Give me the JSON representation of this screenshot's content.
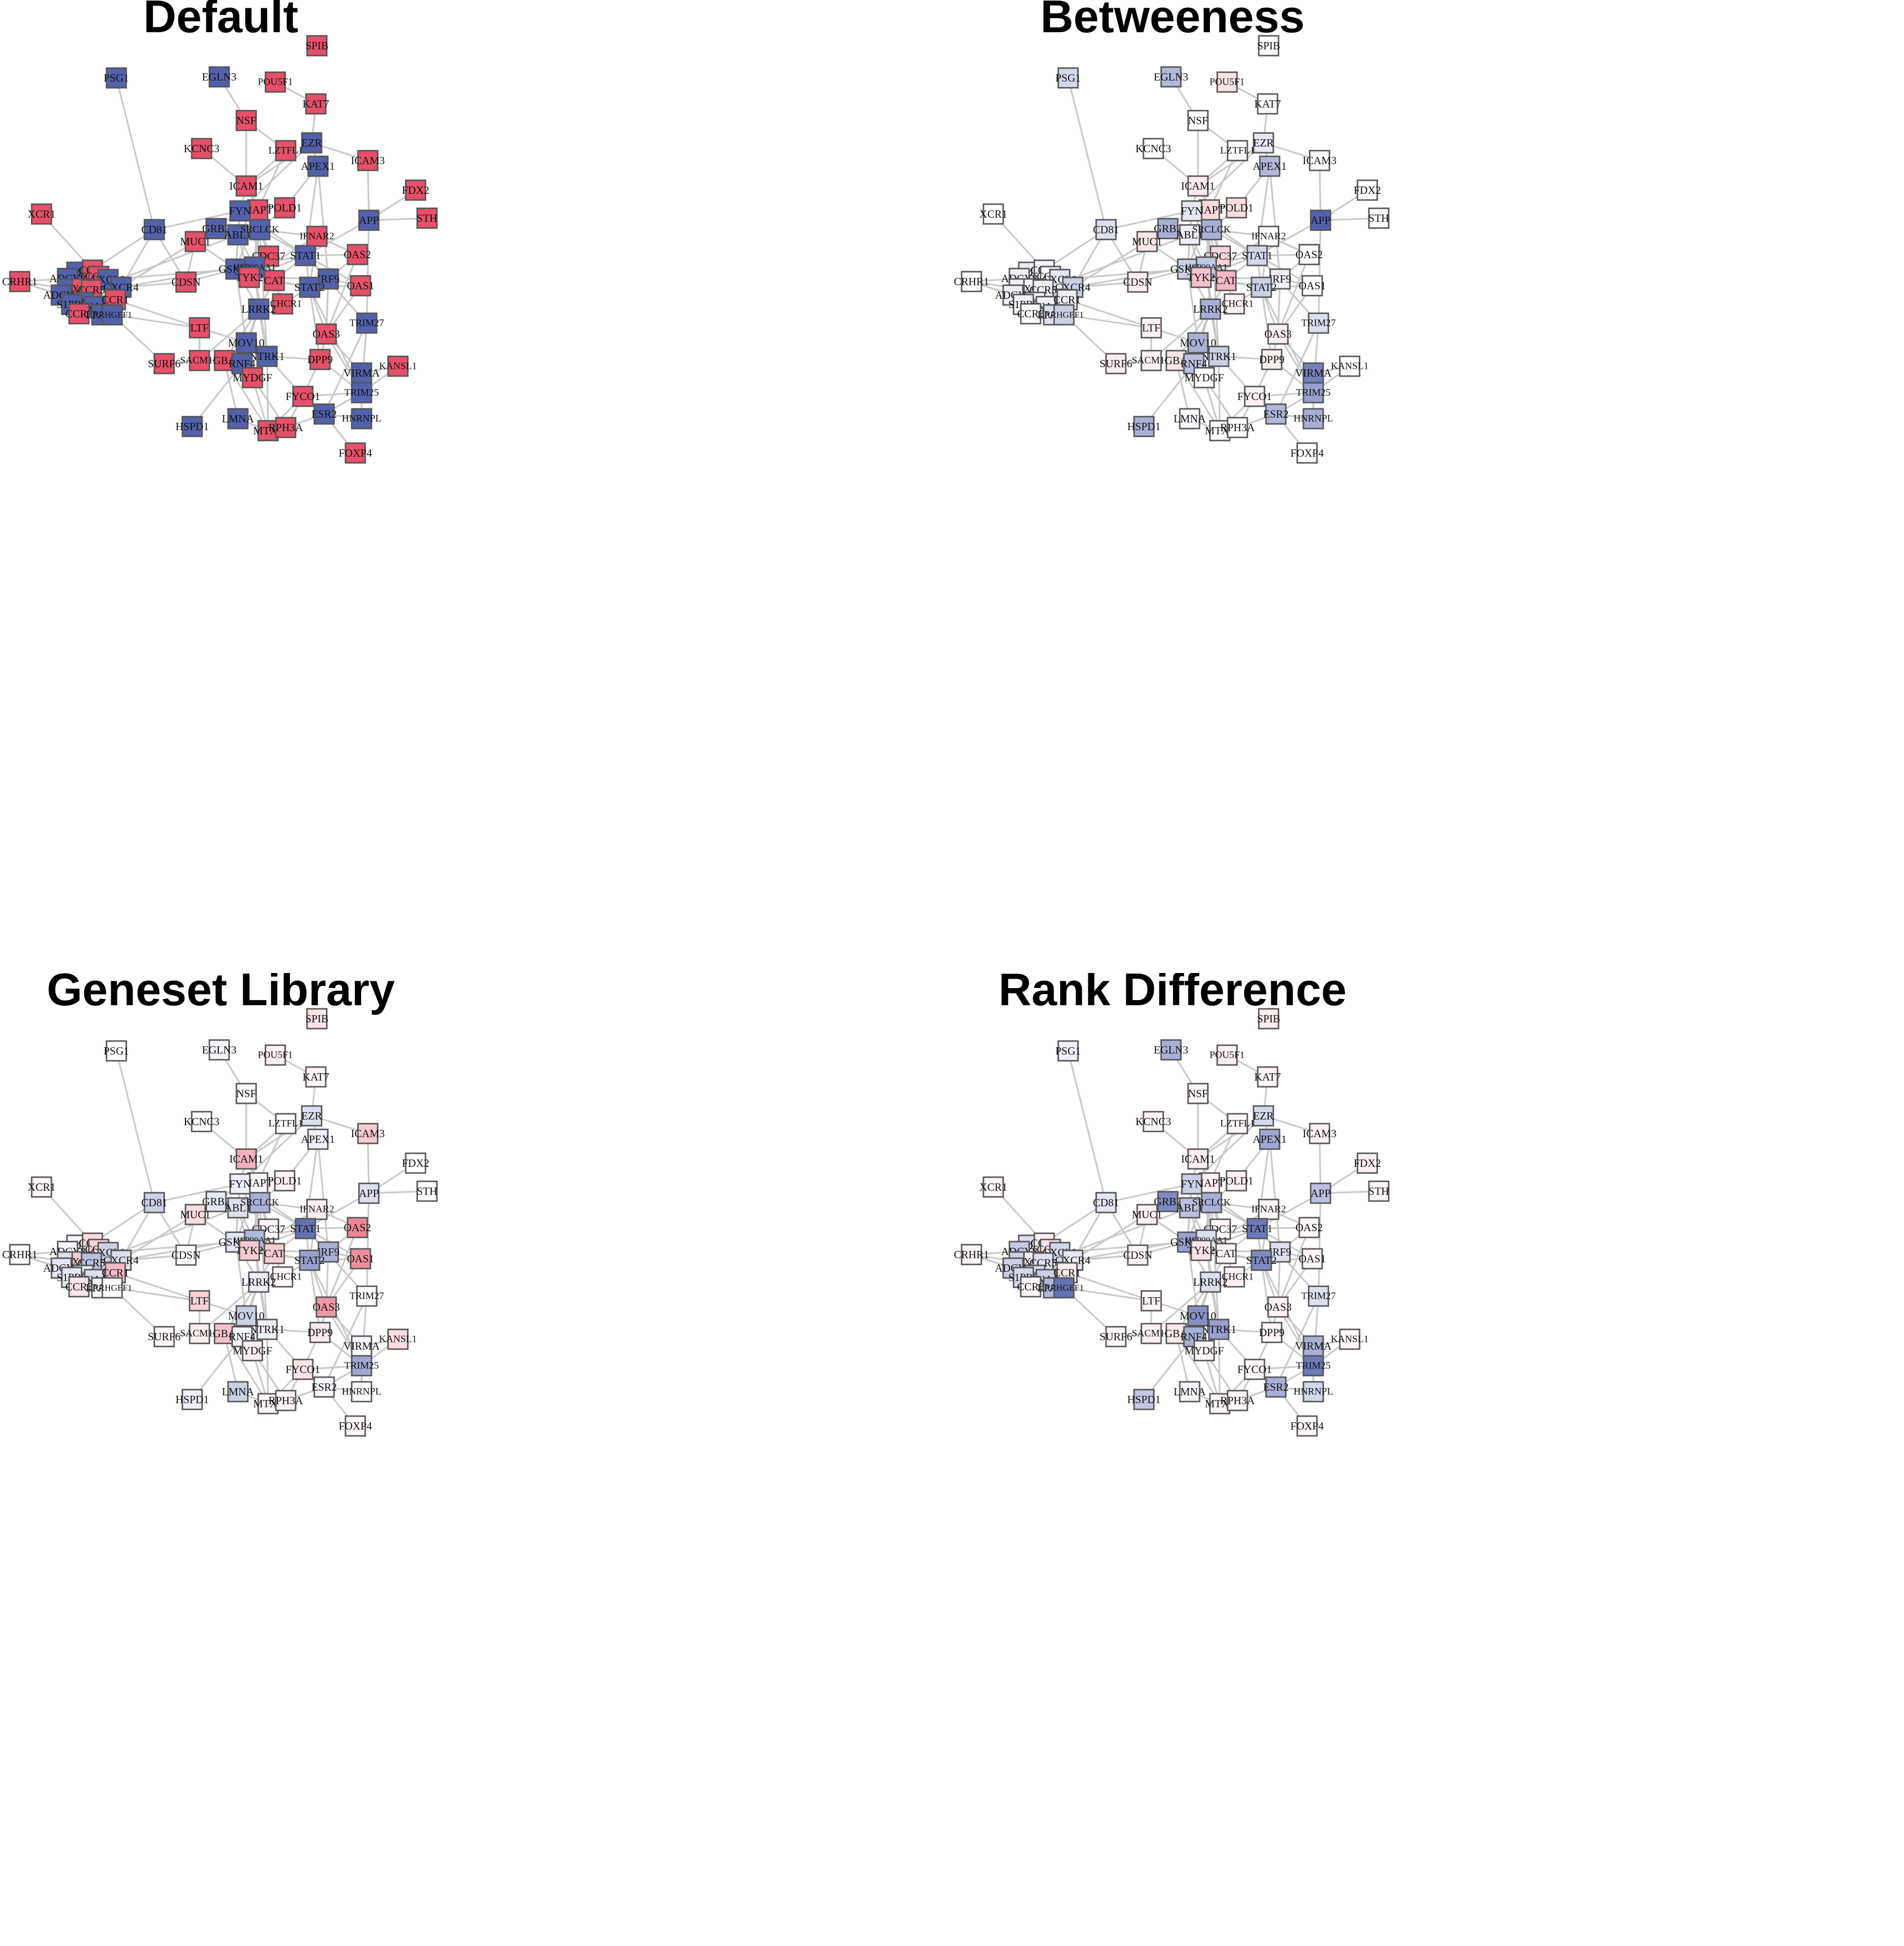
{
  "panels": [
    {
      "title": "Default",
      "values": {
        "SPIB": -1,
        "PSG1": 1,
        "EGLN3": 1,
        "POU5F1": -1,
        "KAT7": -1,
        "NSF": -1,
        "KCNC3": -1,
        "LZTFL1": -1,
        "EZR": 1,
        "ICAM3": -1,
        "APEX1": 1,
        "FDX2": -1,
        "ICAM1": -1,
        "XCR1": -1,
        "POLD1": -1,
        "MAPT": -1,
        "FYN": 1,
        "APP": 1,
        "STH": -1,
        "CD81": 1,
        "GRB2": 1,
        "ABL1": 1,
        "SRCLCK": 1,
        "MUC1": -1,
        "IFNAR2": -1,
        "CDC37": -1,
        "STAT1": 1,
        "OAS2": -1,
        "GSK3B": 1,
        "HSP90AA1": 1,
        "TYK2": -1,
        "CAT": -1,
        "IRF9": 1,
        "CRHR1": -1,
        "NMU": 1,
        "CCR2": -1,
        "CCR9": -1,
        "ADCY8": 1,
        "CXCL9": 1,
        "CXCR4": 1,
        "ADCY1": 1,
        "CXCR2": -1,
        "CCR5": -1,
        "ADCY3": 1,
        "CCL5": 1,
        "S1PR5": 1,
        "GNA12": 1,
        "CCR1": -1,
        "CCR3": -1,
        "LPAR1": 1,
        "ARHGEF1": 1,
        "CDSN": -1,
        "STAT2": 1,
        "OAS1": -1,
        "CCHCR1": -1,
        "LRRK2": 1,
        "TRIM27": 1,
        "LTF": -1,
        "OAS3": -1,
        "MOV10": 1,
        "NTRK1": 1,
        "SURF6": -1,
        "SACM1L": -1,
        "GBA": -1,
        "RNF4": 1,
        "DPP9": -1,
        "KANSL1": -1,
        "MYDGF": -1,
        "VIRMA": 1,
        "TRIM25": 1,
        "FYCO1": -1,
        "LMNA": 1,
        "ESR2": 1,
        "HNRNPL": 1,
        "HSPD1": 1,
        "MTX1": -1,
        "RPH3A": -1,
        "FOXP4": -1
      }
    },
    {
      "title": "Betweeness",
      "values": {
        "SPIB": 0,
        "PSG1": 0.25,
        "EGLN3": 0.45,
        "POU5F1": -0.15,
        "KAT7": 0,
        "NSF": 0,
        "KCNC3": 0,
        "LZTFL1": 0,
        "EZR": 0.15,
        "ICAM3": 0,
        "APEX1": 0.45,
        "FDX2": 0,
        "ICAM1": -0.12,
        "XCR1": 0,
        "POLD1": -0.2,
        "MAPT": -0.22,
        "FYN": 0.15,
        "APP": 1,
        "STH": 0,
        "CD81": 0.2,
        "GRB2": 0.5,
        "ABL1": 0.1,
        "SRCLCK": 0.5,
        "MUC1": -0.15,
        "IFNAR2": 0,
        "CDC37": -0.25,
        "STAT1": 0.25,
        "OAS2": 0,
        "GSK3B": 0.3,
        "HSP90AA1": 0.35,
        "TYK2": -0.35,
        "CAT": -0.4,
        "IRF9": 0.1,
        "CRHR1": 0,
        "NMU": 0.12,
        "CCR2": 0.05,
        "CCR9": 0.05,
        "ADCY8": 0.1,
        "CXCL9": 0.15,
        "CXCR4": 0.3,
        "ADCY1": 0.1,
        "CXCR2": 0.05,
        "CCR5": 0.1,
        "ADCY3": 0.1,
        "CCL5": 0.05,
        "S1PR5": 0.05,
        "GNA12": 0.1,
        "CCR1": 0.1,
        "CCR3": 0,
        "LPAR1": 0.2,
        "ARHGEF1": 0.3,
        "CDSN": -0.1,
        "STAT2": 0.3,
        "OAS1": 0,
        "CCHCR1": -0.08,
        "LRRK2": 0.5,
        "TRIM27": 0.2,
        "LTF": -0.08,
        "OAS3": -0.1,
        "MOV10": 0.5,
        "NTRK1": 0.3,
        "SURF6": -0.1,
        "SACM1L": -0.08,
        "GBA": -0.15,
        "RNF4": 0.4,
        "DPP9": -0.1,
        "KANSL1": 0,
        "MYDGF": 0,
        "VIRMA": 0.8,
        "TRIM25": 0.6,
        "FYCO1": -0.08,
        "LMNA": 0.05,
        "ESR2": 0.45,
        "HNRNPL": 0.5,
        "HSPD1": 0.5,
        "MTX1": 0,
        "RPH3A": 0,
        "FOXP4": 0
      }
    },
    {
      "title": "Geneset Library",
      "values": {
        "SPIB": -0.15,
        "PSG1": 0,
        "EGLN3": 0.05,
        "POU5F1": -0.08,
        "KAT7": -0.05,
        "NSF": 0,
        "KCNC3": 0,
        "LZTFL1": 0,
        "EZR": 0.2,
        "ICAM3": -0.3,
        "APEX1": 0.1,
        "FDX2": 0,
        "ICAM1": -0.45,
        "XCR1": -0.05,
        "POLD1": -0.08,
        "MAPT": -0.05,
        "FYN": 0.1,
        "APP": 0.2,
        "STH": 0,
        "CD81": 0.3,
        "GRB2": 0.15,
        "ABL1": 0.2,
        "SRCLCK": 0.5,
        "MUC1": -0.2,
        "IFNAR2": -0.1,
        "CDC37": -0.05,
        "STAT1": 0.9,
        "OAS2": -0.7,
        "GSK3B": 0.15,
        "HSP90AA1": 0.45,
        "TYK2": -0.3,
        "CAT": -0.3,
        "IRF9": 0.5,
        "CRHR1": 0,
        "NMU": 0.05,
        "CCR2": -0.2,
        "CCR9": -0.25,
        "ADCY8": 0.05,
        "CXCL9": 0.3,
        "CXCR4": 0.2,
        "ADCY1": 0.2,
        "CXCR2": -0.3,
        "CCR5": 0.4,
        "ADCY3": 0.15,
        "CCL5": 0.1,
        "S1PR5": 0.15,
        "GNA12": 0.2,
        "CCR1": -0.4,
        "CCR3": -0.15,
        "LPAR1": 0.05,
        "ARHGEF1": 0,
        "CDSN": 0,
        "STAT2": 0.6,
        "OAS1": -0.65,
        "CCHCR1": -0.05,
        "LRRK2": 0.1,
        "TRIM27": 0,
        "LTF": -0.25,
        "OAS3": -0.6,
        "MOV10": 0.3,
        "NTRK1": 0.1,
        "SURF6": -0.05,
        "SACM1L": -0.1,
        "GBA": -0.35,
        "RNF4": 0.05,
        "DPP9": -0.12,
        "KANSL1": -0.2,
        "MYDGF": -0.1,
        "VIRMA": 0.05,
        "TRIM25": 0.55,
        "FYCO1": -0.15,
        "LMNA": 0.3,
        "ESR2": 0.05,
        "HNRNPL": 0,
        "HSPD1": 0.1,
        "MTX1": -0.05,
        "RPH3A": -0.05,
        "FOXP4": -0.05
      }
    },
    {
      "title": "Rank Difference",
      "values": {
        "SPIB": -0.1,
        "PSG1": 0.1,
        "EGLN3": 0.5,
        "POU5F1": -0.08,
        "KAT7": -0.05,
        "NSF": -0.05,
        "KCNC3": -0.05,
        "LZTFL1": -0.05,
        "EZR": 0.25,
        "ICAM3": -0.08,
        "APEX1": 0.55,
        "FDX2": -0.08,
        "ICAM1": -0.1,
        "XCR1": -0.05,
        "POLD1": -0.08,
        "MAPT": -0.1,
        "FYN": 0.3,
        "APP": 0.4,
        "STH": -0.05,
        "CD81": 0.15,
        "GRB2": 0.75,
        "ABL1": 0.4,
        "SRCLCK": 0.5,
        "MUC1": -0.08,
        "IFNAR2": -0.05,
        "CDC37": -0.05,
        "STAT1": 0.85,
        "OAS2": -0.05,
        "GSK3B": 0.6,
        "HSP90AA1": 0.2,
        "TYK2": -0.15,
        "CAT": -0.05,
        "IRF9": 0.2,
        "CRHR1": -0.05,
        "NMU": 0.2,
        "CCR2": -0.1,
        "CCR9": -0.15,
        "ADCY8": 0.35,
        "CXCL9": 0.25,
        "CXCR4": 0.15,
        "ADCY1": 0.3,
        "CXCR2": -0.1,
        "CCR5": 0.2,
        "ADCY3": 0.3,
        "CCL5": 0.2,
        "S1PR5": 0.25,
        "GNA12": 0.3,
        "CCR1": -0.1,
        "CCR3": -0.05,
        "LPAR1": 0.45,
        "ARHGEF1": 0.9,
        "CDSN": -0.05,
        "STAT2": 0.75,
        "OAS1": -0.05,
        "CCHCR1": -0.08,
        "LRRK2": 0.2,
        "TRIM27": 0.2,
        "LTF": -0.05,
        "OAS3": -0.08,
        "MOV10": 0.7,
        "NTRK1": 0.6,
        "SURF6": -0.05,
        "SACM1L": -0.08,
        "GBA": -0.12,
        "RNF4": 0.5,
        "DPP9": -0.05,
        "KANSL1": -0.05,
        "MYDGF": -0.05,
        "VIRMA": 0.5,
        "TRIM25": 0.85,
        "FYCO1": -0.05,
        "LMNA": 0.05,
        "ESR2": 0.5,
        "HNRNPL": 0.25,
        "HSPD1": 0.35,
        "MTX1": -0.05,
        "RPH3A": -0.05,
        "FOXP4": -0.05
      }
    }
  ],
  "colors": {
    "positive": "#5361ad",
    "negative": "#e6506a",
    "neutral": "#ffffff",
    "edge": "#c9c9c9"
  },
  "node_names": [
    "SPIB",
    "PSG1",
    "EGLN3",
    "POU5F1",
    "KAT7",
    "NSF",
    "KCNC3",
    "LZTFL1",
    "EZR",
    "ICAM3",
    "APEX1",
    "FDX2",
    "ICAM1",
    "XCR1",
    "POLD1",
    "MAPT",
    "FYN",
    "APP",
    "STH",
    "CD81",
    "GRB2",
    "ABL1",
    "SRCLCK",
    "MUC1",
    "IFNAR2",
    "CDC37",
    "STAT1",
    "OAS2",
    "GSK3B",
    "HSP90AA1",
    "TYK2",
    "CAT",
    "IRF9",
    "CRHR1",
    "NMU",
    "CCR2",
    "CCR9",
    "ADCY8",
    "CXCL9",
    "CXCR4",
    "ADCY1",
    "CXCR2",
    "CCR5",
    "ADCY3",
    "CCL5",
    "S1PR5",
    "GNA12",
    "CCR1",
    "CCR3",
    "LPAR1",
    "ARHGEF1",
    "CDSN",
    "STAT2",
    "OAS1",
    "CCHCR1",
    "LRRK2",
    "TRIM27",
    "LTF",
    "OAS3",
    "MOV10",
    "NTRK1",
    "SURF6",
    "SACM1L",
    "GBA",
    "RNF4",
    "DPP9",
    "KANSL1",
    "MYDGF",
    "VIRMA",
    "TRIM25",
    "FYCO1",
    "LMNA",
    "ESR2",
    "HNRNPL",
    "HSPD1",
    "MTX1",
    "RPH3A",
    "FOXP4"
  ],
  "edges": [
    [
      "XCR1",
      "CCR2"
    ],
    [
      "CRHR1",
      "ADCY8"
    ],
    [
      "CRHR1",
      "ADCY1"
    ],
    [
      "CRHR1",
      "ADCY3"
    ],
    [
      "CRHR1",
      "GNA12"
    ],
    [
      "NMU",
      "CCR2"
    ],
    [
      "NMU",
      "CXCL9"
    ],
    [
      "CCR2",
      "CCR9"
    ],
    [
      "CCR2",
      "CCR5"
    ],
    [
      "CCR9",
      "CXCR4"
    ],
    [
      "ADCY8",
      "CCR5"
    ],
    [
      "CXCL9",
      "CXCR4"
    ],
    [
      "ADCY1",
      "CXCR2"
    ],
    [
      "CXCR2",
      "CCR1"
    ],
    [
      "CCR5",
      "CCL5"
    ],
    [
      "ADCY3",
      "S1PR5"
    ],
    [
      "CCL5",
      "GNA12"
    ],
    [
      "S1PR5",
      "CCR3"
    ],
    [
      "GNA12",
      "LPAR1"
    ],
    [
      "CCR1",
      "ARHGEF1"
    ],
    [
      "CCR3",
      "LPAR1"
    ],
    [
      "LPAR1",
      "ARHGEF1"
    ],
    [
      "ADCY8",
      "CXCL9"
    ],
    [
      "ADCY1",
      "CCL5"
    ],
    [
      "CCR5",
      "CCR1"
    ],
    [
      "NMU",
      "ADCY3"
    ],
    [
      "CD81",
      "CCR2"
    ],
    [
      "CD81",
      "CXCR4"
    ],
    [
      "CD81",
      "CDSN"
    ],
    [
      "CDSN",
      "CXCR4"
    ],
    [
      "CDSN",
      "CCR5"
    ],
    [
      "CXCR4",
      "GRB2"
    ],
    [
      "CCR5",
      "ABL1"
    ],
    [
      "CCR1",
      "LTF"
    ],
    [
      "ARHGEF1",
      "LTF"
    ],
    [
      "CXCL9",
      "GSK3B"
    ],
    [
      "CXCR4",
      "STAT1"
    ],
    [
      "ARHGEF1",
      "SURF6"
    ],
    [
      "CDSN",
      "GSK3B"
    ],
    [
      "LTF",
      "MOV10"
    ],
    [
      "LTF",
      "SACM1L"
    ],
    [
      "PSG1",
      "CD81"
    ],
    [
      "CD81",
      "FYN"
    ],
    [
      "EGLN3",
      "NSF"
    ],
    [
      "NSF",
      "ICAM1"
    ],
    [
      "POU5F1",
      "KAT7"
    ],
    [
      "KAT7",
      "EZR"
    ],
    [
      "NSF",
      "LZTFL1"
    ],
    [
      "KCNC3",
      "ICAM1"
    ],
    [
      "LZTFL1",
      "ICAM1"
    ],
    [
      "LZTFL1",
      "MAPT"
    ],
    [
      "EZR",
      "APEX1"
    ],
    [
      "EZR",
      "ICAM3"
    ],
    [
      "EZR",
      "ICAM1"
    ],
    [
      "EZR",
      "FYN"
    ],
    [
      "APEX1",
      "POLD1"
    ],
    [
      "APEX1",
      "STAT1"
    ],
    [
      "APEX1",
      "IRF9"
    ],
    [
      "ICAM3",
      "APP"
    ],
    [
      "FDX2",
      "APP"
    ],
    [
      "STH",
      "APP"
    ],
    [
      "APP",
      "STAT1"
    ],
    [
      "APP",
      "TRIM27"
    ],
    [
      "ICAM1",
      "FYN"
    ],
    [
      "ICAM1",
      "MAPT"
    ],
    [
      "MAPT",
      "FYN"
    ],
    [
      "MAPT",
      "HSP90AA1"
    ],
    [
      "MAPT",
      "GSK3B"
    ],
    [
      "MAPT",
      "CDC37"
    ],
    [
      "POLD1",
      "SRCLCK"
    ],
    [
      "FYN",
      "SRCLCK"
    ],
    [
      "FYN",
      "ABL1"
    ],
    [
      "FYN",
      "GRB2"
    ],
    [
      "FYN",
      "GSK3B"
    ],
    [
      "FYN",
      "STAT1"
    ],
    [
      "FYN",
      "CAT"
    ],
    [
      "GRB2",
      "ABL1"
    ],
    [
      "GRB2",
      "SRCLCK"
    ],
    [
      "ABL1",
      "SRCLCK"
    ],
    [
      "ABL1",
      "HSP90AA1"
    ],
    [
      "ABL1",
      "GSK3B"
    ],
    [
      "ABL1",
      "TYK2"
    ],
    [
      "SRCLCK",
      "HSP90AA1"
    ],
    [
      "SRCLCK",
      "STAT1"
    ],
    [
      "SRCLCK",
      "TYK2"
    ],
    [
      "SRCLCK",
      "IFNAR2"
    ],
    [
      "SRCLCK",
      "CDC37"
    ],
    [
      "MUC1",
      "GRB2"
    ],
    [
      "MUC1",
      "GSK3B"
    ],
    [
      "MUC1",
      "CDSN"
    ],
    [
      "IFNAR2",
      "STAT1"
    ],
    [
      "IFNAR2",
      "STAT2"
    ],
    [
      "IFNAR2",
      "TYK2"
    ],
    [
      "IFNAR2",
      "OAS2"
    ],
    [
      "CDC37",
      "HSP90AA1"
    ],
    [
      "CDC37",
      "TYK2"
    ],
    [
      "STAT1",
      "STAT2"
    ],
    [
      "STAT1",
      "IRF9"
    ],
    [
      "STAT1",
      "TYK2"
    ],
    [
      "STAT1",
      "OAS2"
    ],
    [
      "STAT1",
      "OAS1"
    ],
    [
      "STAT1",
      "CAT"
    ],
    [
      "GSK3B",
      "HSP90AA1"
    ],
    [
      "GSK3B",
      "TYK2"
    ],
    [
      "GSK3B",
      "LRRK2"
    ],
    [
      "GSK3B",
      "MOV10"
    ],
    [
      "HSP90AA1",
      "TYK2"
    ],
    [
      "HSP90AA1",
      "CAT"
    ],
    [
      "HSP90AA1",
      "LRRK2"
    ],
    [
      "TYK2",
      "CAT"
    ],
    [
      "TYK2",
      "STAT2"
    ],
    [
      "TYK2",
      "IRF9"
    ],
    [
      "CAT",
      "STAT2"
    ],
    [
      "CAT",
      "LRRK2"
    ],
    [
      "CAT",
      "CCHCR1"
    ],
    [
      "IRF9",
      "STAT2"
    ],
    [
      "IRF9",
      "OAS1"
    ],
    [
      "IRF9",
      "OAS2"
    ],
    [
      "IRF9",
      "OAS3"
    ],
    [
      "STAT2",
      "OAS1"
    ],
    [
      "STAT2",
      "OAS3"
    ],
    [
      "STAT2",
      "CCHCR1"
    ],
    [
      "STAT2",
      "TRIM25"
    ],
    [
      "STAT2",
      "DPP9"
    ],
    [
      "OAS1",
      "OAS3"
    ],
    [
      "OAS2",
      "OAS3"
    ],
    [
      "OAS3",
      "DPP9"
    ],
    [
      "OAS3",
      "TRIM25"
    ],
    [
      "OAS3",
      "VIRMA"
    ],
    [
      "LRRK2",
      "MOV10"
    ],
    [
      "LRRK2",
      "NTRK1"
    ],
    [
      "LRRK2",
      "RNF4"
    ],
    [
      "LRRK2",
      "GBA"
    ],
    [
      "LRRK2",
      "SACM1L"
    ],
    [
      "MOV10",
      "NTRK1"
    ],
    [
      "MOV10",
      "RNF4"
    ],
    [
      "MOV10",
      "GBA"
    ],
    [
      "MOV10",
      "MYDGF"
    ],
    [
      "NTRK1",
      "RNF4"
    ],
    [
      "NTRK1",
      "DPP9"
    ],
    [
      "NTRK1",
      "FYCO1"
    ],
    [
      "NTRK1",
      "MTX1"
    ],
    [
      "SURF6",
      "SACM1L"
    ],
    [
      "SACM1L",
      "GBA"
    ],
    [
      "GBA",
      "RNF4"
    ],
    [
      "GBA",
      "LMNA"
    ],
    [
      "GBA",
      "MTX1"
    ],
    [
      "RNF4",
      "MYDGF"
    ],
    [
      "RNF4",
      "HSPD1"
    ],
    [
      "MYDGF",
      "MTX1"
    ],
    [
      "MYDGF",
      "RPH3A"
    ],
    [
      "DPP9",
      "TRIM25"
    ],
    [
      "DPP9",
      "FYCO1"
    ],
    [
      "KANSL1",
      "VIRMA"
    ],
    [
      "KANSL1",
      "TRIM25"
    ],
    [
      "VIRMA",
      "TRIM25"
    ],
    [
      "VIRMA",
      "HNRNPL"
    ],
    [
      "TRIM25",
      "ESR2"
    ],
    [
      "TRIM25",
      "HNRNPL"
    ],
    [
      "TRIM25",
      "TRIM27"
    ],
    [
      "TRIM25",
      "FYCO1"
    ],
    [
      "FYCO1",
      "ESR2"
    ],
    [
      "FYCO1",
      "MTX1"
    ],
    [
      "FYCO1",
      "RPH3A"
    ],
    [
      "ESR2",
      "FOXP4"
    ],
    [
      "ESR2",
      "HNRNPL"
    ],
    [
      "ESR2",
      "RPH3A"
    ],
    [
      "LMNA",
      "MTX1"
    ],
    [
      "MTX1",
      "RPH3A"
    ],
    [
      "TRIM27",
      "ESR2"
    ],
    [
      "STAT1",
      "TRIM27"
    ],
    [
      "HSP90AA1",
      "NTRK1"
    ],
    [
      "SRCLCK",
      "NTRK1"
    ]
  ]
}
